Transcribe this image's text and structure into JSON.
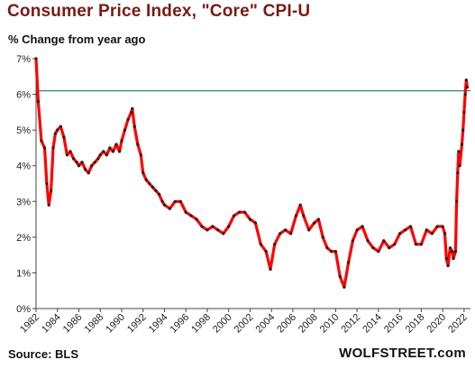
{
  "header": {
    "title": "Consumer  Price Index, \"Core\"  CPI-U",
    "subtitle": "% Change from year ago"
  },
  "footer": {
    "source": "Source: BLS",
    "brand": "WOLFSTREET.com"
  },
  "colors": {
    "line": "#ff0000",
    "markers": "#222222",
    "reference_line": "#2f8a6e",
    "axis": "#444444",
    "title": "#7a1a14"
  },
  "chart_data": {
    "type": "line",
    "title": "Consumer  Price Index, \"Core\"  CPI-U",
    "subtitle": "% Change from year ago",
    "xlabel": "",
    "ylabel": "",
    "xlim": [
      1982,
      2022.6
    ],
    "ylim": [
      0,
      7
    ],
    "grid": false,
    "x_tick_labels": [
      "1982",
      "1984",
      "1986",
      "1988",
      "1990",
      "1992",
      "1994",
      "1996",
      "1998",
      "2000",
      "2002",
      "2004",
      "2006",
      "2008",
      "2010",
      "2012",
      "2014",
      "2016",
      "2018",
      "2020",
      "2022"
    ],
    "y_tick_labels": [
      "0%",
      "1%",
      "2%",
      "3%",
      "4%",
      "5%",
      "6%",
      "7%"
    ],
    "reference_line": {
      "y": 6.1
    },
    "series": [
      {
        "x": [
          1982.0,
          1982.2,
          1982.5,
          1982.8,
          1983.0,
          1983.2,
          1983.4,
          1983.6,
          1983.8,
          1984.0,
          1984.3,
          1984.6,
          1984.9,
          1985.2,
          1985.5,
          1985.8,
          1986.0,
          1986.3,
          1986.6,
          1986.9,
          1987.2,
          1987.5,
          1987.8,
          1988.0,
          1988.3,
          1988.6,
          1988.9,
          1989.2,
          1989.5,
          1989.8,
          1990.0,
          1990.3,
          1990.6,
          1990.9,
          1991.0,
          1991.2,
          1991.5,
          1991.8,
          1992.0,
          1992.3,
          1992.6,
          1992.9,
          1993.2,
          1993.5,
          1993.8,
          1994.0,
          1994.5,
          1995.0,
          1995.5,
          1996.0,
          1996.5,
          1997.0,
          1997.5,
          1998.0,
          1998.5,
          1999.0,
          1999.5,
          2000.0,
          2000.5,
          2001.0,
          2001.5,
          2002.0,
          2002.5,
          2003.0,
          2003.5,
          2003.9,
          2004.3,
          2004.8,
          2005.3,
          2005.8,
          2006.3,
          2006.7,
          2007.0,
          2007.5,
          2008.0,
          2008.4,
          2008.8,
          2009.2,
          2009.6,
          2010.0,
          2010.4,
          2010.8,
          2011.2,
          2011.6,
          2012.0,
          2012.5,
          2013.0,
          2013.5,
          2014.0,
          2014.5,
          2015.0,
          2015.5,
          2016.0,
          2016.5,
          2017.0,
          2017.5,
          2018.0,
          2018.5,
          2019.0,
          2019.5,
          2020.0,
          2020.2,
          2020.35,
          2020.5,
          2020.7,
          2020.9,
          2021.0,
          2021.2,
          2021.3,
          2021.4,
          2021.5,
          2021.6,
          2021.8,
          2021.9,
          2022.0,
          2022.1,
          2022.2,
          2022.3
        ],
        "y": [
          7.0,
          5.8,
          4.7,
          4.5,
          3.5,
          2.9,
          3.3,
          4.5,
          4.9,
          5.0,
          5.1,
          4.8,
          4.3,
          4.4,
          4.2,
          4.1,
          4.0,
          4.1,
          3.9,
          3.8,
          4.0,
          4.1,
          4.2,
          4.3,
          4.4,
          4.3,
          4.5,
          4.4,
          4.6,
          4.4,
          4.7,
          5.0,
          5.3,
          5.5,
          5.6,
          5.1,
          4.6,
          4.3,
          3.8,
          3.6,
          3.5,
          3.4,
          3.3,
          3.2,
          3.0,
          2.9,
          2.8,
          3.0,
          3.0,
          2.7,
          2.6,
          2.5,
          2.3,
          2.2,
          2.3,
          2.2,
          2.1,
          2.3,
          2.6,
          2.7,
          2.7,
          2.5,
          2.4,
          1.8,
          1.6,
          1.1,
          1.8,
          2.1,
          2.2,
          2.1,
          2.6,
          2.9,
          2.6,
          2.2,
          2.4,
          2.5,
          2.0,
          1.7,
          1.6,
          1.6,
          0.9,
          0.6,
          1.3,
          1.9,
          2.2,
          2.3,
          1.9,
          1.7,
          1.6,
          1.9,
          1.7,
          1.8,
          2.1,
          2.2,
          2.3,
          1.8,
          1.8,
          2.2,
          2.1,
          2.3,
          2.3,
          2.1,
          1.4,
          1.2,
          1.7,
          1.6,
          1.4,
          1.6,
          3.0,
          3.8,
          4.4,
          4.0,
          4.6,
          5.0,
          5.5,
          6.0,
          6.4,
          6.2
        ]
      }
    ]
  }
}
